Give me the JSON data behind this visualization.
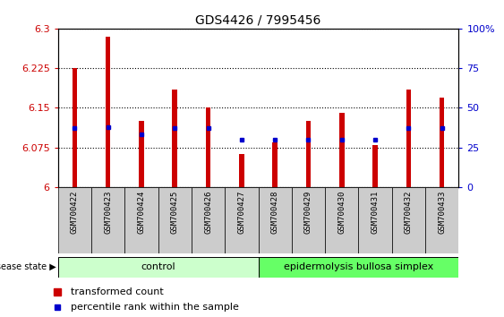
{
  "title": "GDS4426 / 7995456",
  "samples": [
    "GSM700422",
    "GSM700423",
    "GSM700424",
    "GSM700425",
    "GSM700426",
    "GSM700427",
    "GSM700428",
    "GSM700429",
    "GSM700430",
    "GSM700431",
    "GSM700432",
    "GSM700433"
  ],
  "transformed_count": [
    6.225,
    6.285,
    6.125,
    6.185,
    6.15,
    6.063,
    6.085,
    6.125,
    6.14,
    6.08,
    6.185,
    6.17
  ],
  "percentile_rank": [
    37,
    38,
    33,
    37,
    37,
    30,
    30,
    30,
    30,
    30,
    37,
    37
  ],
  "ylim_left": [
    6.0,
    6.3
  ],
  "ylim_right": [
    0,
    100
  ],
  "yticks_left": [
    6.0,
    6.075,
    6.15,
    6.225,
    6.3
  ],
  "yticks_right": [
    0,
    25,
    50,
    75,
    100
  ],
  "ytick_labels_left": [
    "6",
    "6.075",
    "6.15",
    "6.225",
    "6.3"
  ],
  "ytick_labels_right": [
    "0",
    "25",
    "50",
    "75",
    "100%"
  ],
  "bar_color": "#cc0000",
  "dot_color": "#0000cc",
  "bar_width": 0.15,
  "baseline": 6.0,
  "control_samples": 6,
  "control_label": "control",
  "disease_label": "epidermolysis bullosa simplex",
  "disease_state_label": "disease state",
  "legend_bar_label": "transformed count",
  "legend_dot_label": "percentile rank within the sample",
  "control_color": "#ccffcc",
  "disease_color": "#66ff66",
  "xtick_bg_color": "#cccccc",
  "right_axis_color": "#0000cc",
  "left_axis_color": "#cc0000",
  "title_fontsize": 10,
  "tick_fontsize": 8,
  "label_fontsize": 7
}
